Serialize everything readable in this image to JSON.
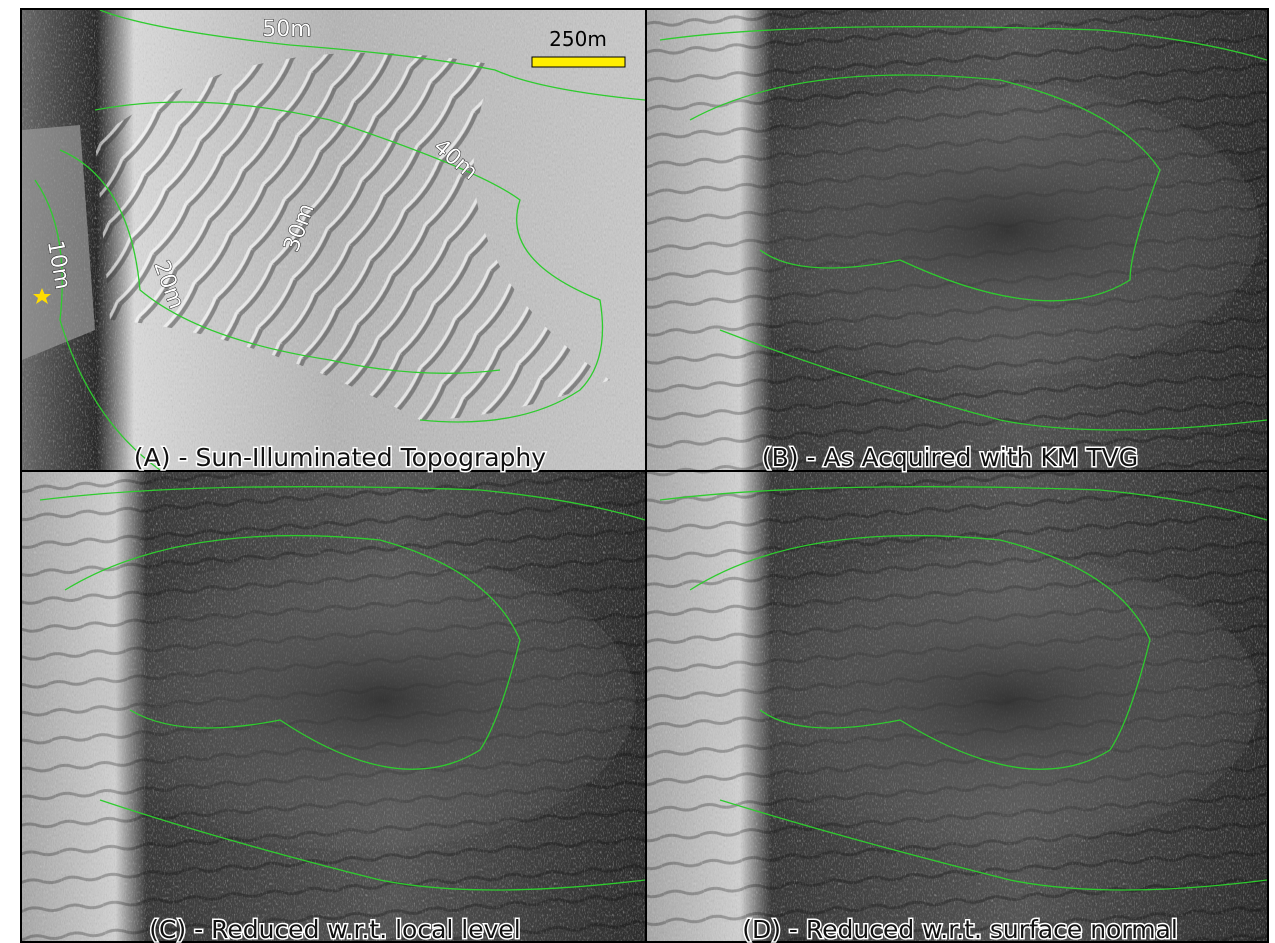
{
  "scale_bar": {
    "label": "250m"
  },
  "panels": [
    {
      "caption": "(A) - Sun-Illuminated Topography",
      "contour_labels": [
        "50m",
        "40m",
        "30m",
        "20m",
        "10m"
      ]
    },
    {
      "caption": "(B) - As Acquired with KM TVG"
    },
    {
      "caption": "(C) - Reduced w.r.t. local level"
    },
    {
      "caption": "(D) - Reduced w.r.t. surface normal"
    }
  ]
}
